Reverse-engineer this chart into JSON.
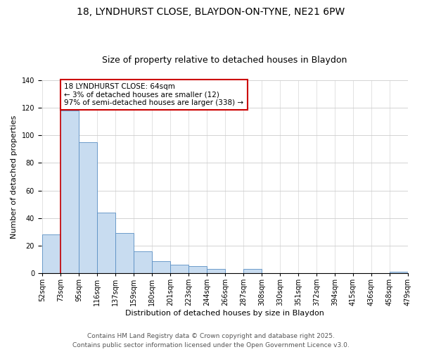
{
  "title": "18, LYNDHURST CLOSE, BLAYDON-ON-TYNE, NE21 6PW",
  "subtitle": "Size of property relative to detached houses in Blaydon",
  "xlabel": "Distribution of detached houses by size in Blaydon",
  "ylabel": "Number of detached properties",
  "bar_values": [
    28,
    118,
    95,
    44,
    29,
    16,
    9,
    6,
    5,
    3,
    0,
    3,
    0,
    0,
    0,
    0,
    0,
    0,
    0,
    1
  ],
  "bar_labels": [
    "52sqm",
    "73sqm",
    "95sqm",
    "116sqm",
    "137sqm",
    "159sqm",
    "180sqm",
    "201sqm",
    "223sqm",
    "244sqm",
    "266sqm",
    "287sqm",
    "308sqm",
    "330sqm",
    "351sqm",
    "372sqm",
    "394sqm",
    "415sqm",
    "436sqm",
    "458sqm",
    "479sqm"
  ],
  "bar_color": "#c8dcf0",
  "bar_edge_color": "#5a8fc3",
  "vline_color": "#cc0000",
  "annotation_title": "18 LYNDHURST CLOSE: 64sqm",
  "annotation_line1": "← 3% of detached houses are smaller (12)",
  "annotation_line2": "97% of semi-detached houses are larger (338) →",
  "annotation_box_color": "white",
  "annotation_box_edge": "#cc0000",
  "ylim": [
    0,
    140
  ],
  "yticks": [
    0,
    20,
    40,
    60,
    80,
    100,
    120,
    140
  ],
  "footer_line1": "Contains HM Land Registry data © Crown copyright and database right 2025.",
  "footer_line2": "Contains public sector information licensed under the Open Government Licence v3.0.",
  "title_fontsize": 10,
  "subtitle_fontsize": 9,
  "axis_label_fontsize": 8,
  "tick_fontsize": 7,
  "footer_fontsize": 6.5,
  "annotation_fontsize": 7.5
}
